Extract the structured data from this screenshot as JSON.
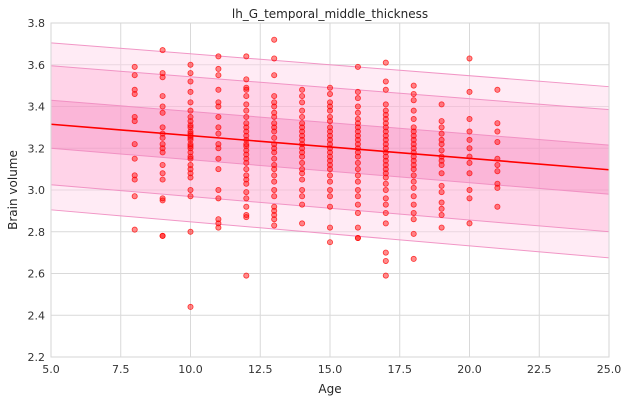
{
  "chart_data": {
    "type": "scatter",
    "title": "lh_G_temporal_middle_thickness",
    "xlabel": "Age",
    "ylabel": "Brain volume",
    "xlim": [
      5.0,
      25.0
    ],
    "ylim": [
      2.2,
      3.8
    ],
    "xticks": [
      "5.0",
      "7.5",
      "10.0",
      "12.5",
      "15.0",
      "17.5",
      "20.0",
      "22.5",
      "25.0"
    ],
    "yticks": [
      "2.2",
      "2.4",
      "2.6",
      "2.8",
      "3.0",
      "3.2",
      "3.4",
      "3.6",
      "3.8"
    ],
    "grid": true,
    "colors": {
      "points": "#ff0000",
      "fit_line": "#ff0000",
      "band_outer": "#ffb6d9",
      "band_middle": "#ff9acb",
      "band_inner": "#f77fbb",
      "grid": "#d9d9d9"
    },
    "fit_line": {
      "x": [
        5.0,
        25.0
      ],
      "y": [
        3.315,
        3.097
      ]
    },
    "bands": [
      {
        "name": "outer",
        "lower": [
          2.905,
          2.675
        ],
        "upper": [
          3.705,
          3.495
        ]
      },
      {
        "name": "middle",
        "lower": [
          3.025,
          2.8
        ],
        "upper": [
          3.595,
          3.385
        ]
      },
      {
        "name": "inner",
        "lower": [
          3.2,
          2.98
        ],
        "upper": [
          3.43,
          3.215
        ]
      }
    ],
    "points": [
      [
        8,
        3.59
      ],
      [
        8,
        3.55
      ],
      [
        8,
        3.48
      ],
      [
        8,
        3.46
      ],
      [
        8,
        3.35
      ],
      [
        8,
        3.33
      ],
      [
        8,
        3.22
      ],
      [
        8,
        3.15
      ],
      [
        8,
        3.07
      ],
      [
        8,
        3.05
      ],
      [
        8,
        2.97
      ],
      [
        8,
        2.81
      ],
      [
        9,
        3.67
      ],
      [
        9,
        3.56
      ],
      [
        9,
        3.54
      ],
      [
        9,
        3.45
      ],
      [
        9,
        3.4
      ],
      [
        9,
        3.37
      ],
      [
        9,
        3.3
      ],
      [
        9,
        3.27
      ],
      [
        9,
        3.25
      ],
      [
        9,
        3.22
      ],
      [
        9,
        3.2
      ],
      [
        9,
        3.18
      ],
      [
        9,
        3.12
      ],
      [
        9,
        3.08
      ],
      [
        9,
        3.05
      ],
      [
        9,
        2.96
      ],
      [
        9,
        2.95
      ],
      [
        9,
        2.78
      ],
      [
        9,
        2.78
      ],
      [
        10,
        3.6
      ],
      [
        10,
        3.56
      ],
      [
        10,
        3.52
      ],
      [
        10,
        3.47
      ],
      [
        10,
        3.42
      ],
      [
        10,
        3.38
      ],
      [
        10,
        3.35
      ],
      [
        10,
        3.33
      ],
      [
        10,
        3.31
      ],
      [
        10,
        3.3
      ],
      [
        10,
        3.28
      ],
      [
        10,
        3.27
      ],
      [
        10,
        3.26
      ],
      [
        10,
        3.25
      ],
      [
        10,
        3.24
      ],
      [
        10,
        3.22
      ],
      [
        10,
        3.21
      ],
      [
        10,
        3.2
      ],
      [
        10,
        3.18
      ],
      [
        10,
        3.16
      ],
      [
        10,
        3.15
      ],
      [
        10,
        3.12
      ],
      [
        10,
        3.1
      ],
      [
        10,
        3.08
      ],
      [
        10,
        3.06
      ],
      [
        10,
        3.0
      ],
      [
        10,
        2.97
      ],
      [
        10,
        2.8
      ],
      [
        10,
        2.44
      ],
      [
        11,
        3.64
      ],
      [
        11,
        3.58
      ],
      [
        11,
        3.55
      ],
      [
        11,
        3.48
      ],
      [
        11,
        3.42
      ],
      [
        11,
        3.4
      ],
      [
        11,
        3.35
      ],
      [
        11,
        3.3
      ],
      [
        11,
        3.27
      ],
      [
        11,
        3.22
      ],
      [
        11,
        3.2
      ],
      [
        11,
        3.15
      ],
      [
        11,
        3.1
      ],
      [
        11,
        3.0
      ],
      [
        11,
        2.96
      ],
      [
        11,
        2.86
      ],
      [
        11,
        2.84
      ],
      [
        11,
        2.82
      ],
      [
        12,
        3.64
      ],
      [
        12,
        3.53
      ],
      [
        12,
        3.49
      ],
      [
        12,
        3.48
      ],
      [
        12,
        3.45
      ],
      [
        12,
        3.41
      ],
      [
        12,
        3.38
      ],
      [
        12,
        3.35
      ],
      [
        12,
        3.32
      ],
      [
        12,
        3.3
      ],
      [
        12,
        3.28
      ],
      [
        12,
        3.26
      ],
      [
        12,
        3.24
      ],
      [
        12,
        3.22
      ],
      [
        12,
        3.21
      ],
      [
        12,
        3.19
      ],
      [
        12,
        3.17
      ],
      [
        12,
        3.15
      ],
      [
        12,
        3.13
      ],
      [
        12,
        3.1
      ],
      [
        12,
        3.07
      ],
      [
        12,
        3.05
      ],
      [
        12,
        3.03
      ],
      [
        12,
        2.99
      ],
      [
        12,
        2.96
      ],
      [
        12,
        2.92
      ],
      [
        12,
        2.88
      ],
      [
        12,
        2.87
      ],
      [
        12,
        2.59
      ],
      [
        13,
        3.72
      ],
      [
        13,
        3.63
      ],
      [
        13,
        3.55
      ],
      [
        13,
        3.45
      ],
      [
        13,
        3.42
      ],
      [
        13,
        3.4
      ],
      [
        13,
        3.37
      ],
      [
        13,
        3.35
      ],
      [
        13,
        3.32
      ],
      [
        13,
        3.3
      ],
      [
        13,
        3.28
      ],
      [
        13,
        3.25
      ],
      [
        13,
        3.22
      ],
      [
        13,
        3.2
      ],
      [
        13,
        3.18
      ],
      [
        13,
        3.15
      ],
      [
        13,
        3.12
      ],
      [
        13,
        3.1
      ],
      [
        13,
        3.07
      ],
      [
        13,
        3.04
      ],
      [
        13,
        3.0
      ],
      [
        13,
        2.97
      ],
      [
        13,
        2.92
      ],
      [
        13,
        2.9
      ],
      [
        13,
        2.88
      ],
      [
        13,
        2.86
      ],
      [
        13,
        2.83
      ],
      [
        14,
        3.48
      ],
      [
        14,
        3.45
      ],
      [
        14,
        3.42
      ],
      [
        14,
        3.38
      ],
      [
        14,
        3.35
      ],
      [
        14,
        3.32
      ],
      [
        14,
        3.3
      ],
      [
        14,
        3.28
      ],
      [
        14,
        3.26
      ],
      [
        14,
        3.24
      ],
      [
        14,
        3.22
      ],
      [
        14,
        3.2
      ],
      [
        14,
        3.18
      ],
      [
        14,
        3.16
      ],
      [
        14,
        3.13
      ],
      [
        14,
        3.1
      ],
      [
        14,
        3.08
      ],
      [
        14,
        3.05
      ],
      [
        14,
        3.0
      ],
      [
        14,
        2.97
      ],
      [
        14,
        2.93
      ],
      [
        14,
        2.84
      ],
      [
        15,
        3.49
      ],
      [
        15,
        3.46
      ],
      [
        15,
        3.42
      ],
      [
        15,
        3.4
      ],
      [
        15,
        3.38
      ],
      [
        15,
        3.35
      ],
      [
        15,
        3.33
      ],
      [
        15,
        3.3
      ],
      [
        15,
        3.28
      ],
      [
        15,
        3.26
      ],
      [
        15,
        3.24
      ],
      [
        15,
        3.22
      ],
      [
        15,
        3.2
      ],
      [
        15,
        3.18
      ],
      [
        15,
        3.16
      ],
      [
        15,
        3.14
      ],
      [
        15,
        3.12
      ],
      [
        15,
        3.1
      ],
      [
        15,
        3.07
      ],
      [
        15,
        3.04
      ],
      [
        15,
        3.0
      ],
      [
        15,
        2.97
      ],
      [
        15,
        2.92
      ],
      [
        15,
        2.82
      ],
      [
        15,
        2.75
      ],
      [
        16,
        3.59
      ],
      [
        16,
        3.47
      ],
      [
        16,
        3.44
      ],
      [
        16,
        3.4
      ],
      [
        16,
        3.37
      ],
      [
        16,
        3.34
      ],
      [
        16,
        3.32
      ],
      [
        16,
        3.3
      ],
      [
        16,
        3.28
      ],
      [
        16,
        3.26
      ],
      [
        16,
        3.24
      ],
      [
        16,
        3.22
      ],
      [
        16,
        3.2
      ],
      [
        16,
        3.18
      ],
      [
        16,
        3.16
      ],
      [
        16,
        3.13
      ],
      [
        16,
        3.1
      ],
      [
        16,
        3.07
      ],
      [
        16,
        3.04
      ],
      [
        16,
        3.0
      ],
      [
        16,
        2.97
      ],
      [
        16,
        2.93
      ],
      [
        16,
        2.89
      ],
      [
        16,
        2.82
      ],
      [
        16,
        2.77
      ],
      [
        16,
        2.77
      ],
      [
        17,
        3.61
      ],
      [
        17,
        3.52
      ],
      [
        17,
        3.48
      ],
      [
        17,
        3.41
      ],
      [
        17,
        3.38
      ],
      [
        17,
        3.36
      ],
      [
        17,
        3.34
      ],
      [
        17,
        3.32
      ],
      [
        17,
        3.3
      ],
      [
        17,
        3.28
      ],
      [
        17,
        3.26
      ],
      [
        17,
        3.24
      ],
      [
        17,
        3.22
      ],
      [
        17,
        3.2
      ],
      [
        17,
        3.18
      ],
      [
        17,
        3.16
      ],
      [
        17,
        3.14
      ],
      [
        17,
        3.12
      ],
      [
        17,
        3.1
      ],
      [
        17,
        3.08
      ],
      [
        17,
        3.06
      ],
      [
        17,
        3.03
      ],
      [
        17,
        3.0
      ],
      [
        17,
        2.96
      ],
      [
        17,
        2.93
      ],
      [
        17,
        2.89
      ],
      [
        17,
        2.84
      ],
      [
        17,
        2.7
      ],
      [
        17,
        2.66
      ],
      [
        17,
        2.59
      ],
      [
        18,
        3.5
      ],
      [
        18,
        3.46
      ],
      [
        18,
        3.43
      ],
      [
        18,
        3.38
      ],
      [
        18,
        3.34
      ],
      [
        18,
        3.3
      ],
      [
        18,
        3.28
      ],
      [
        18,
        3.26
      ],
      [
        18,
        3.24
      ],
      [
        18,
        3.22
      ],
      [
        18,
        3.2
      ],
      [
        18,
        3.18
      ],
      [
        18,
        3.16
      ],
      [
        18,
        3.14
      ],
      [
        18,
        3.12
      ],
      [
        18,
        3.1
      ],
      [
        18,
        3.07
      ],
      [
        18,
        3.04
      ],
      [
        18,
        3.01
      ],
      [
        18,
        2.97
      ],
      [
        18,
        2.93
      ],
      [
        18,
        2.89
      ],
      [
        18,
        2.86
      ],
      [
        18,
        2.79
      ],
      [
        18,
        2.67
      ],
      [
        19,
        3.41
      ],
      [
        19,
        3.33
      ],
      [
        19,
        3.3
      ],
      [
        19,
        3.27
      ],
      [
        19,
        3.24
      ],
      [
        19,
        3.22
      ],
      [
        19,
        3.19
      ],
      [
        19,
        3.16
      ],
      [
        19,
        3.14
      ],
      [
        19,
        3.12
      ],
      [
        19,
        3.08
      ],
      [
        19,
        3.02
      ],
      [
        19,
        2.99
      ],
      [
        19,
        2.94
      ],
      [
        19,
        2.91
      ],
      [
        19,
        2.88
      ],
      [
        19,
        2.82
      ],
      [
        20,
        3.63
      ],
      [
        20,
        3.47
      ],
      [
        20,
        3.34
      ],
      [
        20,
        3.28
      ],
      [
        20,
        3.24
      ],
      [
        20,
        3.2
      ],
      [
        20,
        3.16
      ],
      [
        20,
        3.13
      ],
      [
        20,
        3.08
      ],
      [
        20,
        3.0
      ],
      [
        20,
        2.96
      ],
      [
        20,
        2.84
      ],
      [
        21,
        3.48
      ],
      [
        21,
        3.32
      ],
      [
        21,
        3.28
      ],
      [
        21,
        3.23
      ],
      [
        21,
        3.15
      ],
      [
        21,
        3.12
      ],
      [
        21,
        3.09
      ],
      [
        21,
        3.03
      ],
      [
        21,
        3.01
      ],
      [
        21,
        2.92
      ]
    ]
  }
}
